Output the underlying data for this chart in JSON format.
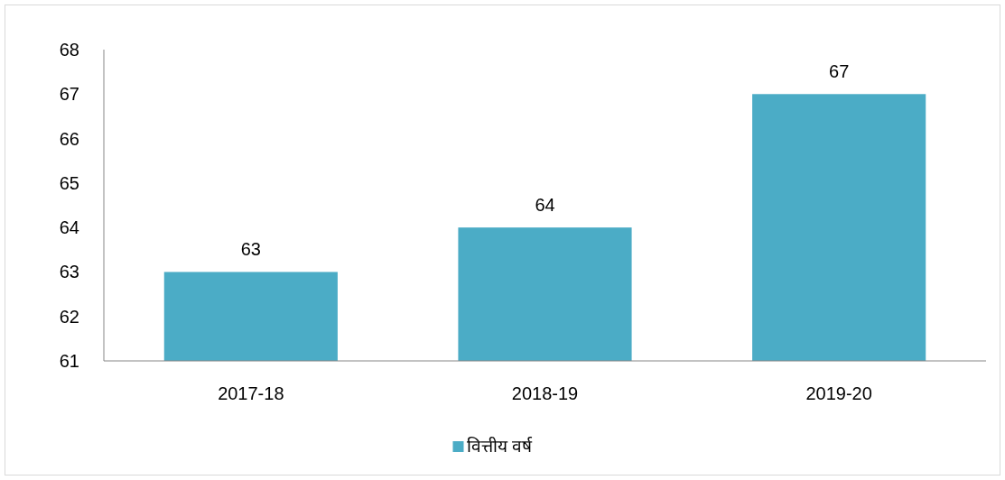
{
  "chart_data": {
    "type": "bar",
    "categories": [
      "2017-18",
      "2018-19",
      "2019-20"
    ],
    "series": [
      {
        "name": "वित्तीय वर्ष",
        "color": "#4bacc6",
        "values": [
          63,
          64,
          67
        ]
      }
    ],
    "ylim": [
      61,
      68
    ],
    "yticks": [
      61,
      62,
      63,
      64,
      65,
      66,
      67,
      68
    ],
    "data_labels": true,
    "legend": "bottom",
    "grid": false
  }
}
